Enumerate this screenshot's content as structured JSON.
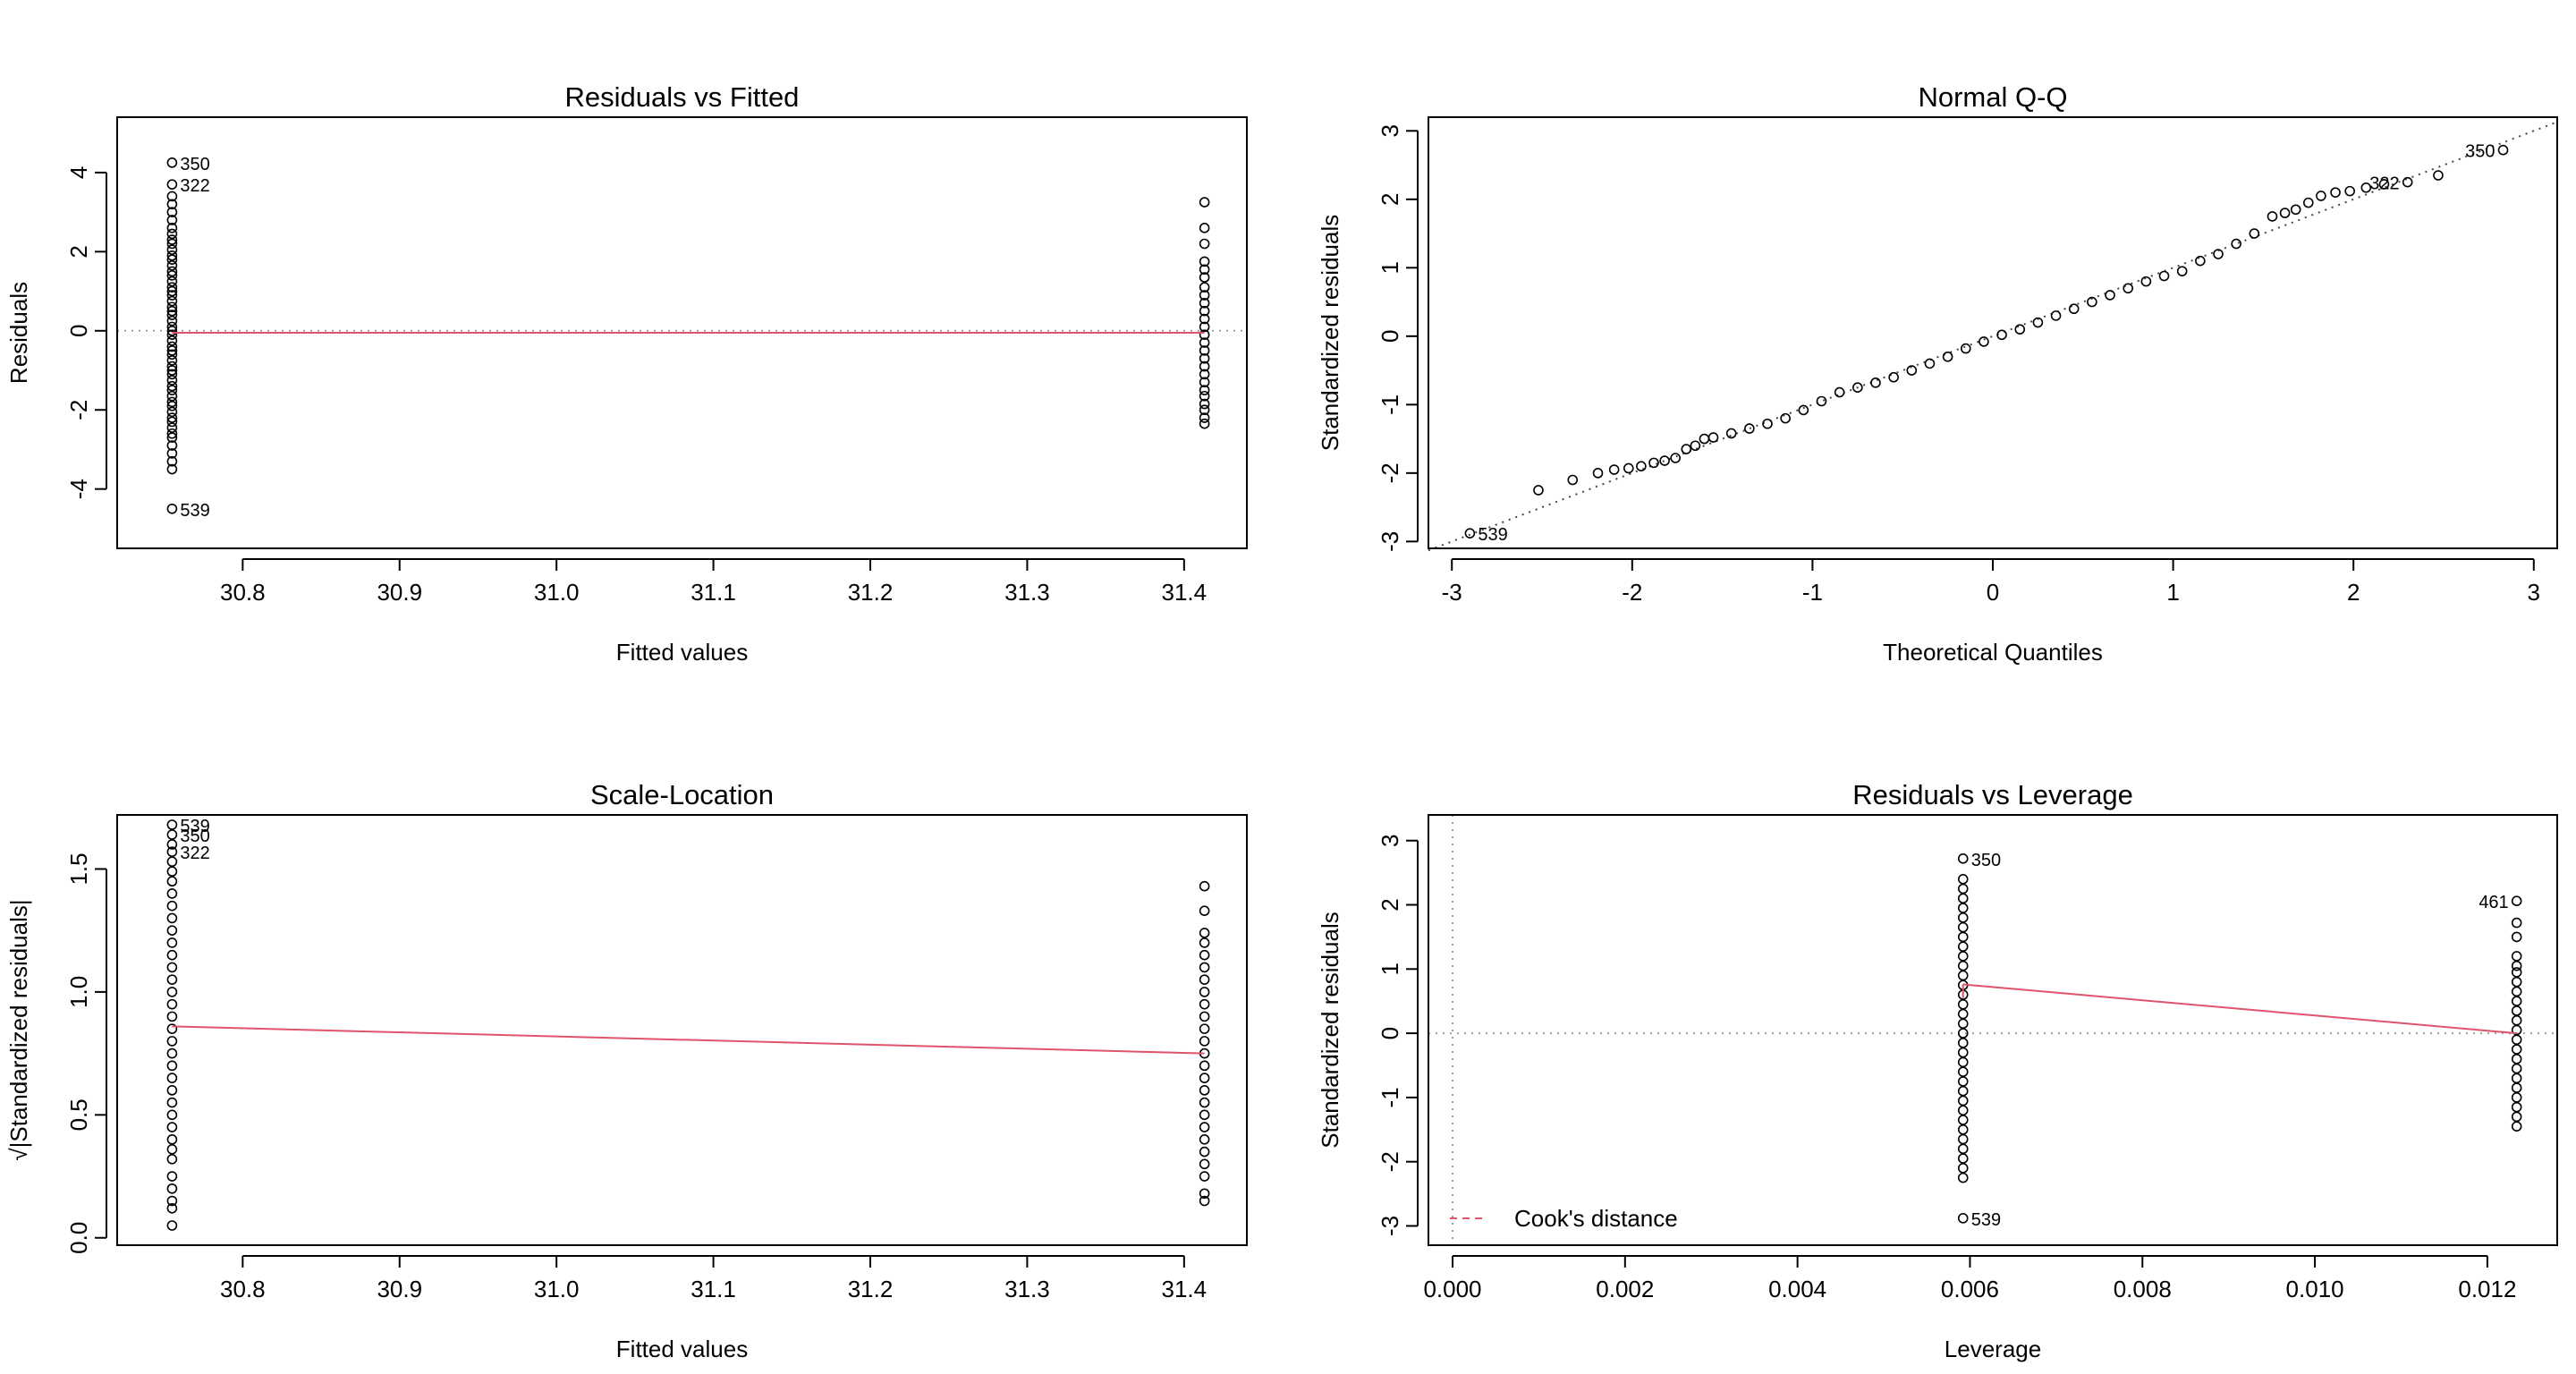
{
  "colors": {
    "axis": "#000000",
    "points": "#000000",
    "smooth": "#DF536B",
    "reference": "#9E9E9E",
    "cook": "#DF536B"
  },
  "chart_data": [
    {
      "id": "rvf",
      "type": "scatter",
      "title": "Residuals vs Fitted",
      "xlabel": "Fitted values",
      "ylabel": "Residuals",
      "xlim": [
        30.72,
        31.44
      ],
      "ylim": [
        -5.5,
        5.4
      ],
      "xticks": [
        30.8,
        30.9,
        31.0,
        31.1,
        31.2,
        31.3,
        31.4
      ],
      "xtick_labels": [
        "30.8",
        "30.9",
        "31.0",
        "31.1",
        "31.2",
        "31.3",
        "31.4"
      ],
      "yticks": [
        -4,
        -2,
        0,
        2,
        4
      ],
      "ytick_labels": [
        "-4",
        "-2",
        "0",
        "2",
        "4"
      ],
      "x_groups": [
        {
          "x": 30.755,
          "values": [
            -4.5,
            -3.5,
            -3.3,
            -3.1,
            -2.9,
            -2.7,
            -2.6,
            -2.45,
            -2.3,
            -2.2,
            -2.05,
            -1.9,
            -1.8,
            -1.65,
            -1.5,
            -1.4,
            -1.25,
            -1.1,
            -1.0,
            -0.9,
            -0.75,
            -0.6,
            -0.5,
            -0.4,
            -0.25,
            -0.1,
            0.0,
            0.1,
            0.25,
            0.4,
            0.5,
            0.6,
            0.75,
            0.9,
            1.0,
            1.1,
            1.25,
            1.4,
            1.5,
            1.65,
            1.8,
            1.9,
            2.05,
            2.2,
            2.3,
            2.45,
            2.6,
            2.8,
            3.0,
            3.2,
            3.4,
            3.7,
            4.25
          ]
        },
        {
          "x": 31.413,
          "values": [
            -2.35,
            -2.2,
            -2.0,
            -1.85,
            -1.65,
            -1.5,
            -1.3,
            -1.1,
            -0.9,
            -0.7,
            -0.5,
            -0.3,
            -0.1,
            0.1,
            0.3,
            0.5,
            0.7,
            0.9,
            1.1,
            1.35,
            1.55,
            1.75,
            2.2,
            2.6,
            3.25
          ]
        }
      ],
      "smooth": [
        [
          30.755,
          -0.05
        ],
        [
          31.413,
          -0.05
        ]
      ],
      "ref_hline": 0,
      "labels": [
        {
          "text": "350",
          "x": 30.755,
          "y": 4.25
        },
        {
          "text": "322",
          "x": 30.755,
          "y": 3.7
        },
        {
          "text": "539",
          "x": 30.755,
          "y": -4.5
        }
      ]
    },
    {
      "id": "qq",
      "type": "scatter",
      "title": "Normal Q-Q",
      "xlabel": "Theoretical Quantiles",
      "ylabel": "Standardized residuals",
      "xlim": [
        -3.13,
        3.13
      ],
      "ylim": [
        -3.1,
        3.2
      ],
      "xticks": [
        -3,
        -2,
        -1,
        0,
        1,
        2,
        3
      ],
      "xtick_labels": [
        "-3",
        "-2",
        "-1",
        "0",
        "1",
        "2",
        "3"
      ],
      "yticks": [
        -3,
        -2,
        -1,
        0,
        1,
        2,
        3
      ],
      "ytick_labels": [
        "-3",
        "-2",
        "-1",
        "0",
        "1",
        "2",
        "3"
      ],
      "qq_points": [
        [
          -2.9,
          -2.88
        ],
        [
          -2.52,
          -2.25
        ],
        [
          -2.33,
          -2.1
        ],
        [
          -2.19,
          -2.0
        ],
        [
          -2.1,
          -1.95
        ],
        [
          -2.02,
          -1.93
        ],
        [
          -1.95,
          -1.9
        ],
        [
          -1.88,
          -1.85
        ],
        [
          -1.82,
          -1.82
        ],
        [
          -1.76,
          -1.78
        ],
        [
          -1.7,
          -1.65
        ],
        [
          -1.65,
          -1.6
        ],
        [
          -1.6,
          -1.5
        ],
        [
          -1.55,
          -1.48
        ],
        [
          -1.45,
          -1.42
        ],
        [
          -1.35,
          -1.35
        ],
        [
          -1.25,
          -1.28
        ],
        [
          -1.15,
          -1.2
        ],
        [
          -1.05,
          -1.08
        ],
        [
          -0.95,
          -0.95
        ],
        [
          -0.85,
          -0.82
        ],
        [
          -0.75,
          -0.75
        ],
        [
          -0.65,
          -0.68
        ],
        [
          -0.55,
          -0.6
        ],
        [
          -0.45,
          -0.5
        ],
        [
          -0.35,
          -0.4
        ],
        [
          -0.25,
          -0.3
        ],
        [
          -0.15,
          -0.18
        ],
        [
          -0.05,
          -0.08
        ],
        [
          0.05,
          0.02
        ],
        [
          0.15,
          0.1
        ],
        [
          0.25,
          0.2
        ],
        [
          0.35,
          0.3
        ],
        [
          0.45,
          0.4
        ],
        [
          0.55,
          0.5
        ],
        [
          0.65,
          0.6
        ],
        [
          0.75,
          0.7
        ],
        [
          0.85,
          0.8
        ],
        [
          0.95,
          0.88
        ],
        [
          1.05,
          0.95
        ],
        [
          1.15,
          1.1
        ],
        [
          1.25,
          1.2
        ],
        [
          1.35,
          1.35
        ],
        [
          1.45,
          1.5
        ],
        [
          1.55,
          1.75
        ],
        [
          1.62,
          1.8
        ],
        [
          1.68,
          1.85
        ],
        [
          1.75,
          1.95
        ],
        [
          1.82,
          2.05
        ],
        [
          1.9,
          2.1
        ],
        [
          1.98,
          2.12
        ],
        [
          2.07,
          2.17
        ],
        [
          2.17,
          2.22
        ],
        [
          2.3,
          2.25
        ],
        [
          2.47,
          2.35
        ],
        [
          2.83,
          2.72
        ]
      ],
      "ref_line": {
        "slope": 1.0,
        "intercept": 0.0
      },
      "labels": [
        {
          "text": "350",
          "x": 2.83,
          "y": 2.72,
          "side": "left"
        },
        {
          "text": "322",
          "x": 2.3,
          "y": 2.25,
          "side": "left"
        },
        {
          "text": "539",
          "x": -2.9,
          "y": -2.88,
          "side": "right"
        }
      ]
    },
    {
      "id": "sl",
      "type": "scatter",
      "title": "Scale-Location",
      "xlabel": "Fitted values",
      "ylabel": "√|Standardized residuals|",
      "xlim": [
        30.72,
        31.44
      ],
      "ylim": [
        -0.03,
        1.72
      ],
      "xticks": [
        30.8,
        30.9,
        31.0,
        31.1,
        31.2,
        31.3,
        31.4
      ],
      "xtick_labels": [
        "30.8",
        "30.9",
        "31.0",
        "31.1",
        "31.2",
        "31.3",
        "31.4"
      ],
      "yticks": [
        0.0,
        0.5,
        1.0,
        1.5
      ],
      "ytick_labels": [
        "0.0",
        "0.5",
        "1.0",
        "1.5"
      ],
      "x_groups": [
        {
          "x": 30.755,
          "values": [
            0.05,
            0.12,
            0.15,
            0.2,
            0.25,
            0.32,
            0.36,
            0.4,
            0.45,
            0.5,
            0.55,
            0.6,
            0.65,
            0.7,
            0.75,
            0.8,
            0.85,
            0.9,
            0.95,
            1.0,
            1.05,
            1.1,
            1.15,
            1.2,
            1.25,
            1.3,
            1.35,
            1.4,
            1.45,
            1.49,
            1.53,
            1.57,
            1.6,
            1.64,
            1.68
          ]
        },
        {
          "x": 31.413,
          "values": [
            0.15,
            0.18,
            0.25,
            0.3,
            0.35,
            0.4,
            0.45,
            0.5,
            0.55,
            0.6,
            0.65,
            0.7,
            0.75,
            0.8,
            0.85,
            0.9,
            0.95,
            1.0,
            1.05,
            1.1,
            1.15,
            1.2,
            1.24,
            1.33,
            1.43
          ]
        }
      ],
      "smooth": [
        [
          30.755,
          0.86
        ],
        [
          31.413,
          0.75
        ]
      ],
      "labels": [
        {
          "text": "539",
          "x": 30.755,
          "y": 1.68
        },
        {
          "text": "350",
          "x": 30.755,
          "y": 1.64
        },
        {
          "text": "322",
          "x": 30.755,
          "y": 1.57
        }
      ]
    },
    {
      "id": "rvl",
      "type": "scatter",
      "title": "Residuals vs Leverage",
      "xlabel": "Leverage",
      "ylabel": "Standardized residuals",
      "xlim": [
        -0.00028,
        0.01281
      ],
      "ylim": [
        -3.3,
        3.4
      ],
      "xticks": [
        0.0,
        0.002,
        0.004,
        0.006,
        0.008,
        0.01,
        0.012
      ],
      "xtick_labels": [
        "0.000",
        "0.002",
        "0.004",
        "0.006",
        "0.008",
        "0.010",
        "0.012"
      ],
      "yticks": [
        -3,
        -2,
        -1,
        0,
        1,
        2,
        3
      ],
      "ytick_labels": [
        "-3",
        "-2",
        "-1",
        "0",
        "1",
        "2",
        "3"
      ],
      "x_groups": [
        {
          "x": 0.00592,
          "values": [
            -2.88,
            -2.25,
            -2.1,
            -1.95,
            -1.8,
            -1.65,
            -1.5,
            -1.35,
            -1.2,
            -1.05,
            -0.9,
            -0.75,
            -0.6,
            -0.45,
            -0.3,
            -0.15,
            0.0,
            0.15,
            0.3,
            0.45,
            0.6,
            0.75,
            0.9,
            1.05,
            1.2,
            1.35,
            1.5,
            1.65,
            1.8,
            1.95,
            2.1,
            2.25,
            2.4,
            2.72
          ]
        },
        {
          "x": 0.01234,
          "values": [
            -1.45,
            -1.3,
            -1.15,
            -1.0,
            -0.85,
            -0.7,
            -0.55,
            -0.4,
            -0.25,
            -0.1,
            0.05,
            0.2,
            0.35,
            0.5,
            0.65,
            0.8,
            0.95,
            1.05,
            1.2,
            1.5,
            1.72,
            2.06
          ]
        }
      ],
      "smooth": [
        [
          0.00592,
          0.76
        ],
        [
          0.01234,
          0.0
        ]
      ],
      "smooth_extra": [
        [
          0.00592,
          0.55
        ],
        [
          0.00592,
          0.76
        ]
      ],
      "ref_hline": 0,
      "ref_vline": 0,
      "labels": [
        {
          "text": "350",
          "x": 0.00592,
          "y": 2.72,
          "side": "right"
        },
        {
          "text": "539",
          "x": 0.00592,
          "y": -2.88,
          "side": "right"
        },
        {
          "text": "461",
          "x": 0.01234,
          "y": 2.06,
          "side": "left"
        }
      ],
      "legend": {
        "label": "Cook's distance",
        "position": "bottom-left",
        "line": "dashed"
      }
    }
  ]
}
